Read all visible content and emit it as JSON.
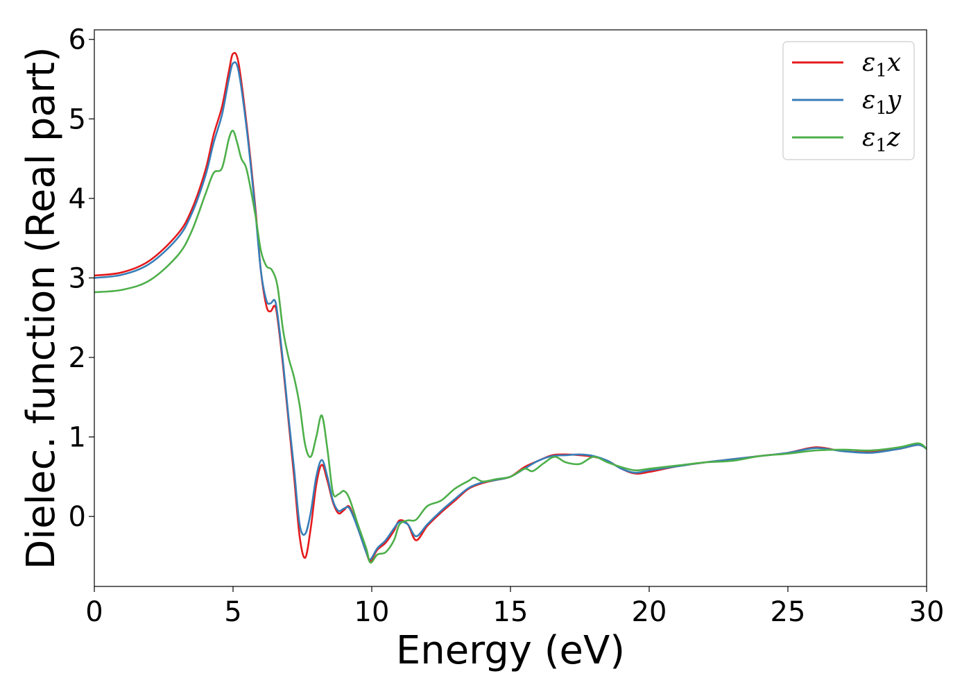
{
  "chart_data": {
    "type": "line",
    "xlabel": "Energy (eV)",
    "ylabel": "Dielec. function (Real part)",
    "xlim": [
      0,
      30
    ],
    "ylim": [
      -0.88,
      6.12
    ],
    "x_ticks": [
      0,
      5,
      10,
      15,
      20,
      25,
      30
    ],
    "y_ticks": [
      0,
      1,
      2,
      3,
      4,
      5,
      6
    ],
    "grid": false,
    "legend_position": "top-right",
    "series": [
      {
        "name": "ε1x",
        "symbol": "ε",
        "sub": "1",
        "axis": "x",
        "color": "#e41a1c",
        "points": [
          [
            0,
            3.03
          ],
          [
            1,
            3.07
          ],
          [
            2,
            3.22
          ],
          [
            3,
            3.55
          ],
          [
            3.5,
            3.85
          ],
          [
            4,
            4.35
          ],
          [
            4.3,
            4.8
          ],
          [
            4.6,
            5.15
          ],
          [
            4.85,
            5.6
          ],
          [
            5.0,
            5.82
          ],
          [
            5.2,
            5.7
          ],
          [
            5.5,
            4.9
          ],
          [
            5.8,
            3.9
          ],
          [
            6.0,
            3.1
          ],
          [
            6.2,
            2.65
          ],
          [
            6.35,
            2.58
          ],
          [
            6.5,
            2.65
          ],
          [
            6.6,
            2.5
          ],
          [
            6.8,
            1.9
          ],
          [
            7.0,
            1.2
          ],
          [
            7.2,
            0.5
          ],
          [
            7.4,
            -0.25
          ],
          [
            7.6,
            -0.52
          ],
          [
            7.8,
            -0.15
          ],
          [
            8.0,
            0.4
          ],
          [
            8.2,
            0.65
          ],
          [
            8.4,
            0.45
          ],
          [
            8.6,
            0.18
          ],
          [
            8.8,
            0.04
          ],
          [
            9.0,
            0.08
          ],
          [
            9.2,
            0.12
          ],
          [
            9.5,
            -0.15
          ],
          [
            9.8,
            -0.45
          ],
          [
            9.95,
            -0.56
          ],
          [
            10.2,
            -0.42
          ],
          [
            10.5,
            -0.33
          ],
          [
            10.8,
            -0.18
          ],
          [
            11.0,
            -0.05
          ],
          [
            11.3,
            -0.1
          ],
          [
            11.6,
            -0.3
          ],
          [
            12.0,
            -0.12
          ],
          [
            12.5,
            0.05
          ],
          [
            13.0,
            0.2
          ],
          [
            13.5,
            0.35
          ],
          [
            14.0,
            0.42
          ],
          [
            14.5,
            0.46
          ],
          [
            15.0,
            0.5
          ],
          [
            15.5,
            0.62
          ],
          [
            16.0,
            0.7
          ],
          [
            16.5,
            0.77
          ],
          [
            17.0,
            0.78
          ],
          [
            17.5,
            0.77
          ],
          [
            18.0,
            0.75
          ],
          [
            18.5,
            0.7
          ],
          [
            19.0,
            0.6
          ],
          [
            19.5,
            0.54
          ],
          [
            20.0,
            0.56
          ],
          [
            21.0,
            0.63
          ],
          [
            22.0,
            0.68
          ],
          [
            23.0,
            0.72
          ],
          [
            24.0,
            0.76
          ],
          [
            25.0,
            0.8
          ],
          [
            26.0,
            0.87
          ],
          [
            27.0,
            0.82
          ],
          [
            28.0,
            0.81
          ],
          [
            29.0,
            0.85
          ],
          [
            29.7,
            0.9
          ],
          [
            30.0,
            0.85
          ]
        ]
      },
      {
        "name": "ε1y",
        "symbol": "ε",
        "sub": "1",
        "axis": "y",
        "color": "#377eb8",
        "points": [
          [
            0,
            3.0
          ],
          [
            1,
            3.04
          ],
          [
            2,
            3.18
          ],
          [
            3,
            3.5
          ],
          [
            3.5,
            3.8
          ],
          [
            4,
            4.28
          ],
          [
            4.3,
            4.7
          ],
          [
            4.6,
            5.05
          ],
          [
            4.85,
            5.5
          ],
          [
            5.0,
            5.7
          ],
          [
            5.2,
            5.6
          ],
          [
            5.5,
            4.85
          ],
          [
            5.8,
            3.85
          ],
          [
            6.0,
            3.1
          ],
          [
            6.2,
            2.72
          ],
          [
            6.35,
            2.68
          ],
          [
            6.5,
            2.72
          ],
          [
            6.6,
            2.55
          ],
          [
            6.8,
            1.95
          ],
          [
            7.0,
            1.25
          ],
          [
            7.2,
            0.6
          ],
          [
            7.4,
            -0.1
          ],
          [
            7.6,
            -0.22
          ],
          [
            7.8,
            0.05
          ],
          [
            8.0,
            0.5
          ],
          [
            8.2,
            0.71
          ],
          [
            8.4,
            0.5
          ],
          [
            8.6,
            0.2
          ],
          [
            8.8,
            0.07
          ],
          [
            9.0,
            0.1
          ],
          [
            9.2,
            0.1
          ],
          [
            9.5,
            -0.15
          ],
          [
            9.8,
            -0.45
          ],
          [
            9.95,
            -0.54
          ],
          [
            10.2,
            -0.4
          ],
          [
            10.5,
            -0.3
          ],
          [
            10.8,
            -0.15
          ],
          [
            11.0,
            -0.07
          ],
          [
            11.3,
            -0.1
          ],
          [
            11.6,
            -0.25
          ],
          [
            12.0,
            -0.1
          ],
          [
            12.5,
            0.07
          ],
          [
            13.0,
            0.22
          ],
          [
            13.5,
            0.36
          ],
          [
            14.0,
            0.43
          ],
          [
            14.5,
            0.46
          ],
          [
            15.0,
            0.5
          ],
          [
            15.5,
            0.6
          ],
          [
            16.0,
            0.7
          ],
          [
            16.5,
            0.76
          ],
          [
            17.0,
            0.77
          ],
          [
            17.5,
            0.78
          ],
          [
            18.0,
            0.76
          ],
          [
            18.5,
            0.7
          ],
          [
            19.0,
            0.6
          ],
          [
            19.5,
            0.55
          ],
          [
            20.0,
            0.58
          ],
          [
            21.0,
            0.63
          ],
          [
            22.0,
            0.68
          ],
          [
            23.0,
            0.72
          ],
          [
            24.0,
            0.76
          ],
          [
            25.0,
            0.8
          ],
          [
            26.0,
            0.86
          ],
          [
            27.0,
            0.82
          ],
          [
            28.0,
            0.8
          ],
          [
            29.0,
            0.85
          ],
          [
            29.7,
            0.9
          ],
          [
            30.0,
            0.85
          ]
        ]
      },
      {
        "name": "ε1z",
        "symbol": "ε",
        "sub": "1",
        "axis": "z",
        "color": "#4daf4a",
        "points": [
          [
            0,
            2.82
          ],
          [
            1,
            2.85
          ],
          [
            2,
            2.97
          ],
          [
            3,
            3.28
          ],
          [
            3.5,
            3.58
          ],
          [
            4,
            4.05
          ],
          [
            4.3,
            4.32
          ],
          [
            4.6,
            4.38
          ],
          [
            4.85,
            4.75
          ],
          [
            5.0,
            4.85
          ],
          [
            5.15,
            4.7
          ],
          [
            5.3,
            4.5
          ],
          [
            5.5,
            4.35
          ],
          [
            5.8,
            3.8
          ],
          [
            6.0,
            3.35
          ],
          [
            6.2,
            3.15
          ],
          [
            6.4,
            3.1
          ],
          [
            6.6,
            2.9
          ],
          [
            6.8,
            2.35
          ],
          [
            7.0,
            2.0
          ],
          [
            7.2,
            1.75
          ],
          [
            7.4,
            1.4
          ],
          [
            7.6,
            0.9
          ],
          [
            7.8,
            0.75
          ],
          [
            8.0,
            1.0
          ],
          [
            8.2,
            1.27
          ],
          [
            8.4,
            0.85
          ],
          [
            8.6,
            0.3
          ],
          [
            8.8,
            0.28
          ],
          [
            9.0,
            0.32
          ],
          [
            9.2,
            0.22
          ],
          [
            9.5,
            -0.1
          ],
          [
            9.8,
            -0.4
          ],
          [
            9.95,
            -0.58
          ],
          [
            10.2,
            -0.48
          ],
          [
            10.5,
            -0.45
          ],
          [
            10.8,
            -0.3
          ],
          [
            11.0,
            -0.1
          ],
          [
            11.3,
            -0.05
          ],
          [
            11.6,
            -0.04
          ],
          [
            12.0,
            0.13
          ],
          [
            12.5,
            0.2
          ],
          [
            13.0,
            0.35
          ],
          [
            13.5,
            0.45
          ],
          [
            13.7,
            0.49
          ],
          [
            14.0,
            0.44
          ],
          [
            14.5,
            0.47
          ],
          [
            15.0,
            0.5
          ],
          [
            15.5,
            0.6
          ],
          [
            15.8,
            0.57
          ],
          [
            16.2,
            0.67
          ],
          [
            16.6,
            0.75
          ],
          [
            17.0,
            0.68
          ],
          [
            17.5,
            0.66
          ],
          [
            18.0,
            0.75
          ],
          [
            18.5,
            0.68
          ],
          [
            19.0,
            0.62
          ],
          [
            19.5,
            0.58
          ],
          [
            20.0,
            0.6
          ],
          [
            21.0,
            0.64
          ],
          [
            22.0,
            0.68
          ],
          [
            23.0,
            0.7
          ],
          [
            24.0,
            0.76
          ],
          [
            25.0,
            0.79
          ],
          [
            26.0,
            0.83
          ],
          [
            27.0,
            0.84
          ],
          [
            28.0,
            0.83
          ],
          [
            29.0,
            0.87
          ],
          [
            29.7,
            0.92
          ],
          [
            30.0,
            0.85
          ]
        ]
      }
    ]
  }
}
